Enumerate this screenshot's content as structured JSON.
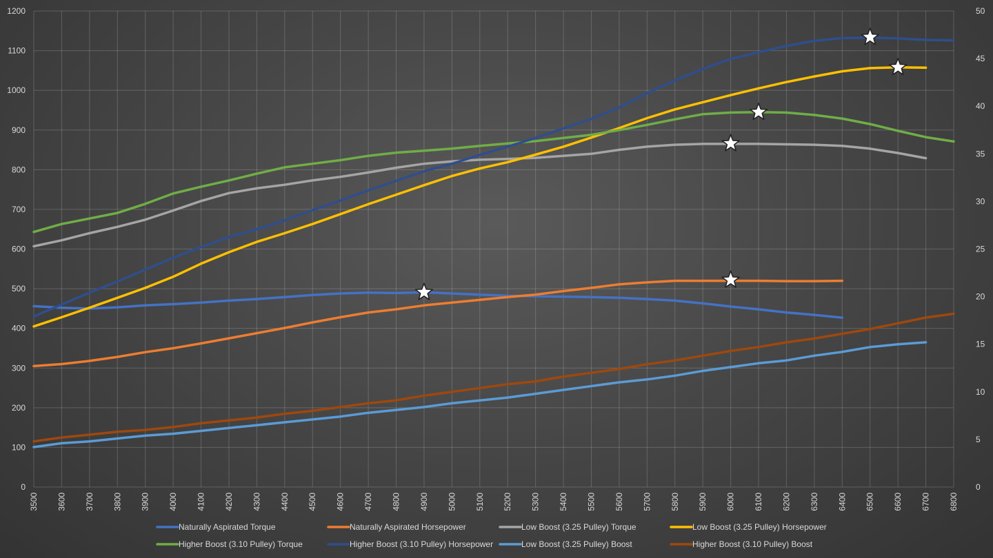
{
  "chart_data": {
    "type": "line",
    "title": "",
    "xlabel": "",
    "ylabel": "",
    "y2label": "",
    "grid": true,
    "legend_position": "bottom",
    "x": [
      3500,
      3600,
      3700,
      3800,
      3900,
      4000,
      4100,
      4200,
      4300,
      4400,
      4500,
      4600,
      4700,
      4800,
      4900,
      5000,
      5100,
      5200,
      5300,
      5400,
      5500,
      5600,
      5700,
      5800,
      5900,
      6000,
      6100,
      6200,
      6300,
      6400,
      6500,
      6600,
      6700,
      6800
    ],
    "xlim": [
      3500,
      6800
    ],
    "ylim": [
      0,
      1200
    ],
    "y2lim": [
      0,
      50
    ],
    "x_ticks": [
      3500,
      3600,
      3700,
      3800,
      3900,
      4000,
      4100,
      4200,
      4300,
      4400,
      4500,
      4600,
      4700,
      4800,
      4900,
      5000,
      5100,
      5200,
      5300,
      5400,
      5500,
      5600,
      5700,
      5800,
      5900,
      6000,
      6100,
      6200,
      6300,
      6400,
      6500,
      6600,
      6700,
      6800
    ],
    "y_ticks": [
      0,
      100,
      200,
      300,
      400,
      500,
      600,
      700,
      800,
      900,
      1000,
      1100,
      1200
    ],
    "y2_ticks": [
      0,
      5,
      10,
      15,
      20,
      25,
      30,
      35,
      40,
      45,
      50
    ],
    "series": [
      {
        "name": "Naturally Aspirated Torque",
        "axis": "left",
        "color": "#4472c4",
        "values": [
          456,
          452,
          450,
          453,
          458,
          461,
          465,
          470,
          474,
          479,
          484,
          488,
          490,
          489,
          491,
          488,
          485,
          482,
          481,
          480,
          479,
          477,
          474,
          470,
          463,
          455,
          448,
          440,
          434,
          427,
          null,
          null,
          null,
          null
        ]
      },
      {
        "name": "Naturally Aspirated Horsepower",
        "axis": "left",
        "color": "#ed7d31",
        "values": [
          305,
          310,
          318,
          328,
          340,
          350,
          362,
          375,
          388,
          401,
          415,
          428,
          440,
          448,
          458,
          465,
          472,
          479,
          485,
          494,
          502,
          511,
          516,
          520,
          520,
          520,
          520,
          519,
          519,
          520,
          null,
          null,
          null,
          null
        ]
      },
      {
        "name": "Low Boost (3.25 Pulley) Torque",
        "axis": "left",
        "color": "#a5a5a5",
        "values": [
          607,
          622,
          640,
          656,
          674,
          697,
          721,
          741,
          753,
          762,
          773,
          782,
          793,
          805,
          815,
          821,
          825,
          827,
          830,
          835,
          840,
          850,
          858,
          863,
          865,
          865,
          865,
          864,
          863,
          860,
          853,
          842,
          829,
          null
        ]
      },
      {
        "name": "Low Boost (3.25 Pulley) Horsepower",
        "axis": "left",
        "color": "#ffc000",
        "values": [
          405,
          428,
          452,
          477,
          502,
          530,
          563,
          592,
          618,
          640,
          663,
          688,
          713,
          737,
          761,
          784,
          803,
          819,
          838,
          858,
          881,
          905,
          930,
          952,
          970,
          988,
          1005,
          1021,
          1035,
          1048,
          1056,
          1058,
          1057,
          null
        ]
      },
      {
        "name": "Higher Boost (3.10 Pulley) Torque",
        "axis": "left",
        "color": "#70ad47",
        "values": [
          643,
          663,
          677,
          691,
          714,
          740,
          757,
          773,
          790,
          806,
          815,
          824,
          835,
          843,
          848,
          853,
          860,
          866,
          872,
          880,
          888,
          900,
          913,
          927,
          940,
          944,
          945,
          944,
          938,
          929,
          915,
          898,
          882,
          871
        ]
      },
      {
        "name": "Higher Boost (3.10 Pulley) Horsepower",
        "axis": "left",
        "color": "#2f4e8c",
        "values": [
          430,
          460,
          490,
          518,
          548,
          578,
          605,
          630,
          650,
          672,
          698,
          722,
          748,
          772,
          796,
          815,
          837,
          858,
          880,
          904,
          928,
          957,
          993,
          1025,
          1054,
          1079,
          1096,
          1112,
          1125,
          1132,
          1133,
          1131,
          1127,
          1126
        ]
      },
      {
        "name": "Low Boost (3.25 Pulley) Boost",
        "axis": "right",
        "color": "#5b9bd5",
        "values": [
          4.2,
          4.6,
          4.8,
          5.1,
          5.4,
          5.6,
          5.9,
          6.2,
          6.5,
          6.8,
          7.1,
          7.4,
          7.8,
          8.1,
          8.4,
          8.8,
          9.1,
          9.4,
          9.8,
          10.2,
          10.6,
          11.0,
          11.3,
          11.7,
          12.2,
          12.6,
          13.0,
          13.3,
          13.8,
          14.2,
          14.7,
          15.0,
          15.2,
          null
        ]
      },
      {
        "name": "Higher Boost (3.10 Pulley) Boost",
        "axis": "right",
        "color": "#9e480e",
        "values": [
          4.8,
          5.2,
          5.5,
          5.8,
          6.0,
          6.3,
          6.7,
          7.0,
          7.3,
          7.7,
          8.0,
          8.4,
          8.8,
          9.1,
          9.6,
          10.0,
          10.4,
          10.8,
          11.1,
          11.6,
          12.0,
          12.4,
          12.9,
          13.3,
          13.8,
          14.3,
          14.7,
          15.2,
          15.6,
          16.1,
          16.6,
          17.2,
          17.8,
          18.2
        ]
      }
    ],
    "markers": [
      {
        "series": 0,
        "x": 4900,
        "y": 491
      },
      {
        "series": 1,
        "x": 6000,
        "y": 522
      },
      {
        "series": 2,
        "x": 6000,
        "y": 866
      },
      {
        "series": 4,
        "x": 6100,
        "y": 945
      },
      {
        "series": 5,
        "x": 6500,
        "y": 1134
      },
      {
        "series": 3,
        "x": 6600,
        "y": 1058
      }
    ]
  }
}
